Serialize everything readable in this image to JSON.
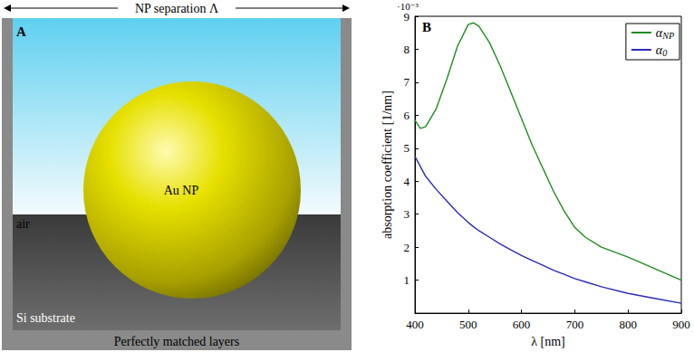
{
  "panel_a": {
    "letter": "A",
    "top_label": "NP separation Λ",
    "medium_label": "air",
    "particle_label": "Au NP",
    "substrate_label": "Si substrate",
    "boundary_label": "Perfectly matched layers"
  },
  "chart_data": {
    "type": "line",
    "panel_label": "B",
    "y_multiplier": "·10⁻³",
    "x_label": "λ [nm]",
    "y_label": "absorption coefficient [1/nm]",
    "x": [
      400,
      410,
      420,
      440,
      460,
      480,
      500,
      510,
      520,
      540,
      560,
      580,
      600,
      620,
      640,
      660,
      680,
      700,
      720,
      750,
      800,
      850,
      900
    ],
    "series": [
      {
        "name": "αNP",
        "color": "#228b22",
        "values": [
          0.00585,
          0.0056,
          0.00565,
          0.0062,
          0.0071,
          0.0081,
          0.00875,
          0.0088,
          0.0087,
          0.0082,
          0.0075,
          0.0067,
          0.0059,
          0.0051,
          0.0044,
          0.0037,
          0.0031,
          0.0026,
          0.0023,
          0.002,
          0.0017,
          0.00135,
          0.001
        ]
      },
      {
        "name": "α0",
        "color": "#2b2bb5",
        "values": [
          0.00475,
          0.00445,
          0.00415,
          0.00375,
          0.0034,
          0.00305,
          0.00275,
          0.00262,
          0.0025,
          0.0023,
          0.0021,
          0.00192,
          0.00175,
          0.0016,
          0.00145,
          0.0013,
          0.00118,
          0.00105,
          0.00095,
          0.0008,
          0.0006,
          0.00045,
          0.0003
        ]
      }
    ],
    "xlim": [
      400,
      900
    ],
    "xticks": [
      400,
      500,
      600,
      700,
      800,
      900
    ],
    "ylim": [
      0,
      0.009
    ],
    "yticks": [
      {
        "value": 0.001,
        "label": "1"
      },
      {
        "value": 0.002,
        "label": "2"
      },
      {
        "value": 0.003,
        "label": "3"
      },
      {
        "value": 0.004,
        "label": "4"
      },
      {
        "value": 0.005,
        "label": "5"
      },
      {
        "value": 0.006,
        "label": "6"
      },
      {
        "value": 0.007,
        "label": "7"
      },
      {
        "value": 0.008,
        "label": "8"
      },
      {
        "value": 0.009,
        "label": "9"
      }
    ],
    "grid": false,
    "legend": "upper right",
    "marker": "none",
    "line_style": "solid"
  }
}
